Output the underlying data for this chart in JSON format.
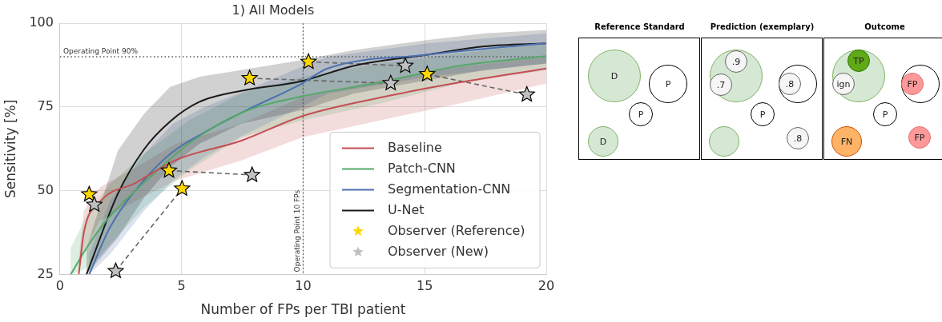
{
  "chart_data": [
    {
      "type": "line",
      "title": "1) All Models",
      "xlabel": "Number of FPs per TBI patient",
      "ylabel": "Sensitivity [%]",
      "xlim": [
        0,
        20
      ],
      "xticks": [
        0,
        5,
        10,
        15,
        20
      ],
      "ylim": [
        25,
        100
      ],
      "yticks": [
        25,
        50,
        75,
        100
      ],
      "grid": true,
      "legend": "bottom right",
      "marker": "none",
      "line_style": "solid",
      "ref_lines": [
        {
          "axis": "y",
          "value": 90,
          "label": "Operating Point 90%",
          "color": "#555555",
          "line_style": "dotted"
        },
        {
          "axis": "x",
          "value": 10,
          "label": "Operating Point 10 FPs",
          "color": "#555555",
          "line_style": "dotted"
        }
      ],
      "series": [
        {
          "name": "Baseline",
          "type": "line",
          "color": "#c44e52",
          "x": [
            0.77,
            0.98,
            1.63,
            3.13,
            4.75,
            7.44,
            9.97,
            13.15,
            16.4,
            20
          ],
          "values": [
            25,
            37.5,
            46.6,
            52.4,
            59.1,
            64.9,
            72.3,
            77.8,
            82.3,
            86.5
          ],
          "lower": [
            25,
            32,
            41,
            47,
            53,
            59,
            66,
            71,
            76,
            82
          ],
          "upper": [
            30,
            44,
            51,
            57,
            64,
            70,
            78,
            83,
            87,
            90
          ]
        },
        {
          "name": "Patch-CNN",
          "type": "line",
          "color": "#55a868",
          "x": [
            0.44,
            1.2,
            2.06,
            3.46,
            5.29,
            7.44,
            9.97,
            13.15,
            16.4,
            20
          ],
          "values": [
            25,
            34.1,
            42.4,
            52.4,
            64,
            73.2,
            78.2,
            82.3,
            87.3,
            90.2
          ],
          "lower": [
            25,
            27,
            34,
            45,
            56,
            66,
            71,
            76,
            82,
            86
          ],
          "upper": [
            33,
            44,
            52,
            61,
            71,
            79,
            84,
            88,
            91,
            94
          ]
        },
        {
          "name": "Segmentation-CNN",
          "type": "line",
          "color": "#4c72b0",
          "x": [
            1.2,
            2.06,
            3.46,
            4.64,
            5.93,
            7.66,
            9.92,
            11,
            15.09,
            20
          ],
          "values": [
            25,
            39.1,
            53.2,
            61.6,
            67.4,
            74,
            81.9,
            86.5,
            90.6,
            94.1
          ],
          "lower": [
            25,
            31,
            44,
            53,
            60,
            67,
            75,
            79,
            84,
            88
          ],
          "upper": [
            31,
            47,
            61,
            70,
            75,
            80,
            87,
            90,
            94,
            97
          ]
        },
        {
          "name": "U-Net",
          "type": "line",
          "color": "#1a1a1a",
          "x": [
            1.09,
            2.38,
            3.46,
            4.53,
            5.72,
            7.44,
            9.92,
            12.07,
            15.09,
            17.45,
            20
          ],
          "values": [
            25,
            49.1,
            62.4,
            70.7,
            76.5,
            79.8,
            82.7,
            87.3,
            90.6,
            93.1,
            94
          ],
          "lower": [
            25,
            36,
            48,
            57,
            64,
            70,
            74,
            79,
            83,
            86,
            88
          ],
          "upper": [
            33,
            62,
            73,
            81,
            84,
            86,
            89,
            92,
            95,
            97,
            98
          ]
        },
        {
          "type": "line",
          "color": "#666666",
          "line_style": "dashed",
          "x": [
            4.48,
            7.9
          ],
          "values": [
            56,
            54.7
          ]
        },
        {
          "type": "line",
          "color": "#666666",
          "line_style": "dashed",
          "x": [
            2.29,
            5.02
          ],
          "values": [
            26,
            50.6
          ]
        },
        {
          "type": "line",
          "color": "#666666",
          "line_style": "dashed",
          "x": [
            7.8,
            13.6
          ],
          "values": [
            83.6,
            82.1
          ]
        },
        {
          "type": "line",
          "color": "#666666",
          "line_style": "dashed",
          "x": [
            10.22,
            14.2
          ],
          "values": [
            88.5,
            87.3
          ]
        },
        {
          "type": "line",
          "color": "#666666",
          "line_style": "dashed",
          "x": [
            15.1,
            19.2
          ],
          "values": [
            84.8,
            78.7
          ]
        },
        {
          "name": "Observer (Reference)",
          "type": "scatter",
          "marker": "star",
          "color": "#ffd700",
          "x": [
            1.2,
            4.48,
            5.02,
            7.8,
            10.22,
            15.1
          ],
          "values": [
            48.9,
            56,
            50.6,
            83.6,
            88.5,
            84.8
          ]
        },
        {
          "name": "Observer (New)",
          "type": "scatter",
          "marker": "star",
          "color": "#c0c0c0",
          "x": [
            1.41,
            7.9,
            2.29,
            13.6,
            14.2,
            19.2
          ],
          "values": [
            45.8,
            54.7,
            26,
            82.1,
            87.3,
            78.7
          ]
        }
      ]
    },
    {
      "type": "other",
      "annotations": [
        "Reference Standard",
        "Prediction (exemplary)",
        "Outcome",
        "D",
        "P",
        "P",
        "D",
        ".9",
        ".7",
        ".8",
        "P",
        ".8",
        "TP",
        "ign",
        "FP",
        "P",
        "FN",
        "FP"
      ]
    }
  ]
}
